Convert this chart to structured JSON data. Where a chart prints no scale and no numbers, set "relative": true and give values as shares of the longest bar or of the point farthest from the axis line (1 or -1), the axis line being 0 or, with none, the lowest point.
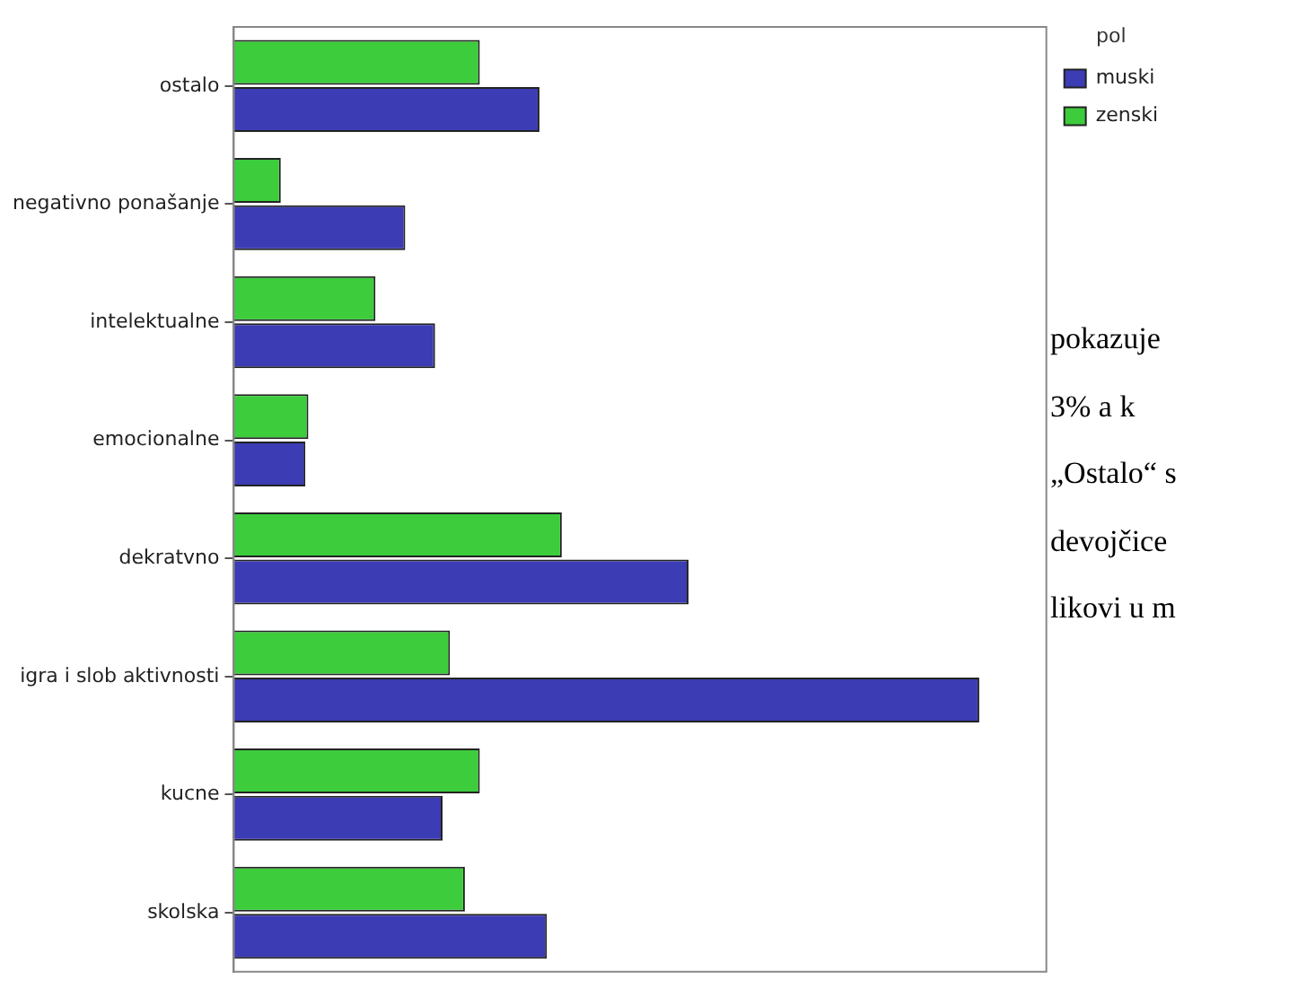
{
  "chart_data": {
    "type": "bar",
    "orientation": "horizontal",
    "relative": true,
    "legend_title": "pol",
    "legend": "right",
    "categories": [
      "ostalo",
      "negativno ponašanje",
      "intelektualne",
      "emocionalne",
      "dekratvno",
      "igra i slob aktivnosti",
      "kucne",
      "skolska"
    ],
    "series": [
      {
        "name": "zenski",
        "color": "#3ccc3c",
        "values": [
          0.33,
          0.063,
          0.19,
          0.1,
          0.44,
          0.29,
          0.33,
          0.31
        ]
      },
      {
        "name": "muski",
        "color": "#3c3cb4",
        "values": [
          0.41,
          0.23,
          0.27,
          0.096,
          0.61,
          1,
          0.28,
          0.42
        ]
      }
    ],
    "annotations": [
      "pokazuje",
      "3% a k",
      "„Ostalo“ s",
      "devojčice",
      "likovi u m"
    ]
  }
}
